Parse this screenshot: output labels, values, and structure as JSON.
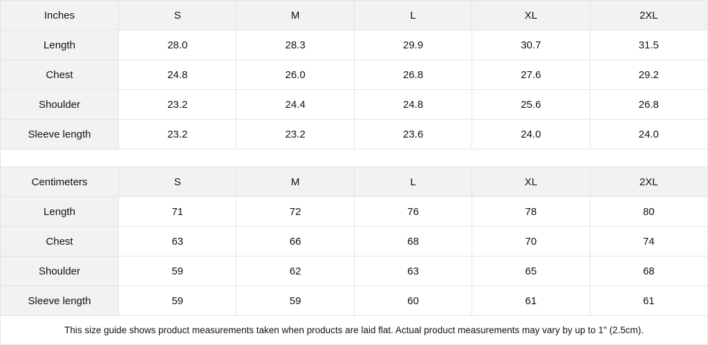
{
  "tables": [
    {
      "header": [
        "Inches",
        "S",
        "M",
        "L",
        "XL",
        "2XL"
      ],
      "rows": [
        [
          "Length",
          "28.0",
          "28.3",
          "29.9",
          "30.7",
          "31.5"
        ],
        [
          "Chest",
          "24.8",
          "26.0",
          "26.8",
          "27.6",
          "29.2"
        ],
        [
          "Shoulder",
          "23.2",
          "24.4",
          "24.8",
          "25.6",
          "26.8"
        ],
        [
          "Sleeve length",
          "23.2",
          "23.2",
          "23.6",
          "24.0",
          "24.0"
        ]
      ]
    },
    {
      "header": [
        "Centimeters",
        "S",
        "M",
        "L",
        "XL",
        "2XL"
      ],
      "rows": [
        [
          "Length",
          "71",
          "72",
          "76",
          "78",
          "80"
        ],
        [
          "Chest",
          "63",
          "66",
          "68",
          "70",
          "74"
        ],
        [
          "Shoulder",
          "59",
          "62",
          "63",
          "65",
          "68"
        ],
        [
          "Sleeve length",
          "59",
          "59",
          "60",
          "61",
          "61"
        ]
      ]
    }
  ],
  "footnote": "This size guide shows product measurements taken when products are laid flat.  Actual product measurements may vary by up to 1\" (2.5cm).",
  "colors": {
    "header_bg": "#f2f2f2",
    "border": "#e3e3e3"
  }
}
